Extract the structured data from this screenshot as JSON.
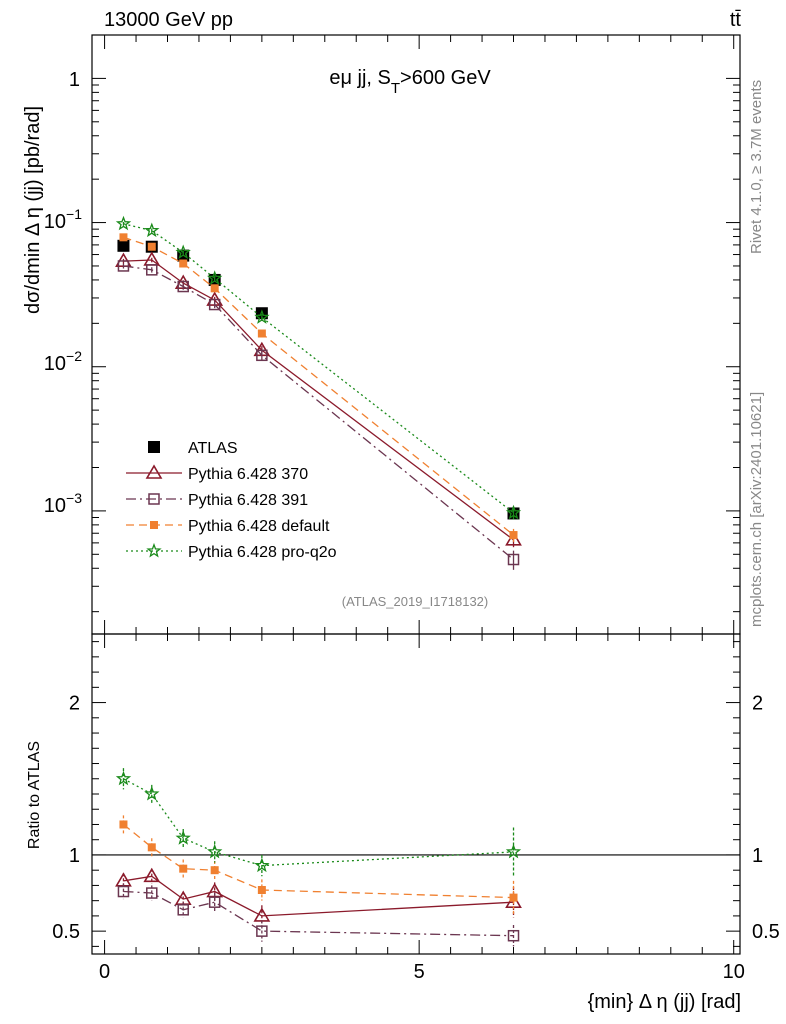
{
  "header": {
    "energy_label": "13000 GeV pp",
    "process_label": "tt̄",
    "watermark_version": "Rivet 4.1.0, ≥ 3.7M events",
    "watermark_site": "mcplots.cern.ch [arXiv:2401.10621]",
    "analysis_id": "(ATLAS_2019_I1718132)"
  },
  "chart_data": [
    {
      "type": "scatter",
      "panel": "main",
      "title": "eμ jj, S_T>600 GeV",
      "ylabel": "dσ/dmin Δ η (jj) [pb/rad]",
      "yscale": "log",
      "xlim": [
        -0.2,
        10.1
      ],
      "ylim": [
        0.00014,
        2.0
      ],
      "y_tick_labels": [
        {
          "value": 1,
          "label": "1"
        },
        {
          "value": 0.1,
          "label": "10^-1"
        },
        {
          "value": 0.01,
          "label": "10^-2"
        },
        {
          "value": 0.001,
          "label": "10^-3"
        }
      ],
      "x": [
        0.3,
        0.75,
        1.25,
        1.75,
        2.5,
        6.5
      ],
      "series": [
        {
          "name": "ATLAS",
          "color": "#000000",
          "marker": "square",
          "line": "none",
          "values": [
            0.069,
            0.068,
            0.059,
            0.04,
            0.0235,
            0.00096
          ],
          "errors": [
            0.003,
            0.003,
            0.003,
            0.002,
            0.0015,
            7e-05
          ]
        },
        {
          "name": "Pythia 6.428 370",
          "color": "#8b1a2b",
          "marker": "triangle",
          "line": "solid",
          "values": [
            0.054,
            0.055,
            0.038,
            0.029,
            0.013,
            0.00063
          ],
          "errors": [
            0.002,
            0.002,
            0.0018,
            0.0015,
            0.0009,
            7e-05
          ]
        },
        {
          "name": "Pythia 6.428 391",
          "color": "#6b3650",
          "marker": "open-square",
          "line": "dashdot",
          "values": [
            0.05,
            0.047,
            0.036,
            0.027,
            0.012,
            0.00046
          ],
          "errors": [
            0.002,
            0.002,
            0.0018,
            0.0015,
            0.0009,
            7e-05
          ]
        },
        {
          "name": "Pythia 6.428 default",
          "color": "#f08030",
          "marker": "filled-square",
          "line": "dashed",
          "values": [
            0.079,
            0.068,
            0.052,
            0.035,
            0.017,
            0.00068
          ],
          "errors": [
            0.003,
            0.003,
            0.002,
            0.002,
            0.001,
            7e-05
          ]
        },
        {
          "name": "Pythia 6.428 pro-q2o",
          "color": "#1a8a1a",
          "marker": "star",
          "line": "dotted",
          "values": [
            0.098,
            0.088,
            0.062,
            0.041,
            0.022,
            0.00097
          ],
          "errors": [
            0.003,
            0.003,
            0.002,
            0.002,
            0.0012,
            0.0001
          ]
        }
      ],
      "legend": [
        "ATLAS",
        "Pythia 6.428 370",
        "Pythia 6.428 391",
        "Pythia 6.428 default",
        "Pythia 6.428 pro-q2o"
      ],
      "legend_position": "bottom-left"
    },
    {
      "type": "scatter",
      "panel": "ratio",
      "ylabel": "Ratio to ATLAS",
      "xlabel": "{min} Δ η (jj) [rad]",
      "xlim": [
        -0.2,
        10.1
      ],
      "ylim": [
        0.35,
        2.45
      ],
      "x_ticks": [
        0,
        5,
        10
      ],
      "y_ticks": [
        0.5,
        1,
        2
      ],
      "x": [
        0.3,
        0.75,
        1.25,
        1.75,
        2.5,
        6.5
      ],
      "series": [
        {
          "name": "Pythia 6.428 370",
          "values": [
            0.83,
            0.86,
            0.71,
            0.76,
            0.6,
            0.69
          ],
          "errors": [
            0.05,
            0.05,
            0.05,
            0.06,
            0.07,
            0.1
          ]
        },
        {
          "name": "Pythia 6.428 391",
          "values": [
            0.76,
            0.75,
            0.64,
            0.69,
            0.5,
            0.47
          ],
          "errors": [
            0.05,
            0.05,
            0.05,
            0.06,
            0.07,
            0.07
          ]
        },
        {
          "name": "Pythia 6.428 default",
          "values": [
            1.2,
            1.05,
            0.91,
            0.9,
            0.77,
            0.72
          ],
          "errors": [
            0.06,
            0.06,
            0.06,
            0.06,
            0.07,
            0.11
          ]
        },
        {
          "name": "Pythia 6.428 pro-q2o",
          "values": [
            1.5,
            1.4,
            1.11,
            1.02,
            0.93,
            1.02
          ],
          "errors": [
            0.07,
            0.06,
            0.06,
            0.07,
            0.07,
            0.16
          ]
        }
      ],
      "reference_line": 1
    }
  ]
}
